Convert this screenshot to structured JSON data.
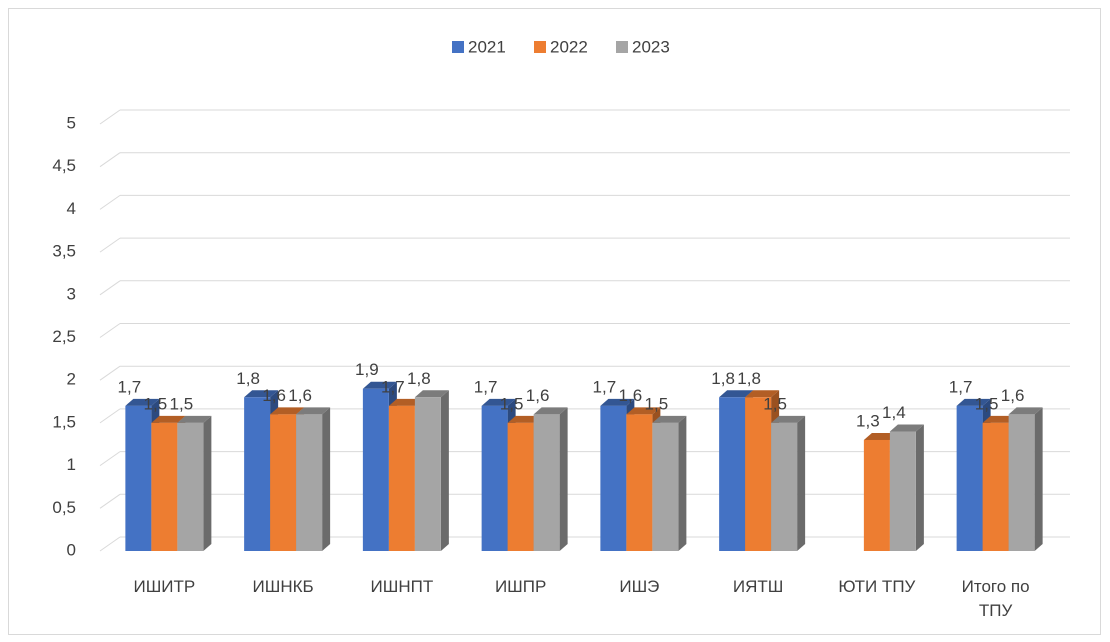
{
  "chart_data": {
    "type": "bar3d",
    "categories": [
      "ИШИТР",
      "ИШНКБ",
      "ИШНПТ",
      "ИШПР",
      "ИШЭ",
      "ИЯТШ",
      "ЮТИ ТПУ",
      "Итого по ТПУ"
    ],
    "series": [
      {
        "name": "2021",
        "color": "#4472c4",
        "values": [
          1.7,
          1.8,
          1.9,
          1.7,
          1.7,
          1.8,
          null,
          1.7
        ],
        "value_labels": [
          "1,7",
          "1,8",
          "1,9",
          "1,7",
          "1,7",
          "1,8",
          null,
          "1,7"
        ]
      },
      {
        "name": "2022",
        "color": "#ed7d31",
        "values": [
          1.5,
          1.6,
          1.7,
          1.5,
          1.6,
          1.8,
          1.3,
          1.5
        ],
        "value_labels": [
          "1,5",
          "1,6",
          "1,7",
          "1,5",
          "1,6",
          "1,8",
          "1,3",
          "1,5"
        ]
      },
      {
        "name": "2023",
        "color": "#a5a5a5",
        "values": [
          1.5,
          1.6,
          1.8,
          1.6,
          1.5,
          1.5,
          1.4,
          1.6
        ],
        "value_labels": [
          "1,5",
          "1,6",
          "1,8",
          "1,6",
          "1,5",
          "1,5",
          "1,4",
          "1,6"
        ]
      }
    ],
    "ylim": [
      0,
      5
    ],
    "yticks": [
      0,
      {
        "value": 0.5,
        "label": "0,5"
      },
      1,
      {
        "value": 1.5,
        "label": "1,5"
      },
      2,
      {
        "value": 2.5,
        "label": "2,5"
      },
      3,
      {
        "value": 3.5,
        "label": "3,5"
      },
      4,
      {
        "value": 4.5,
        "label": "4,5"
      },
      5
    ],
    "grid": true,
    "legend": "top"
  }
}
